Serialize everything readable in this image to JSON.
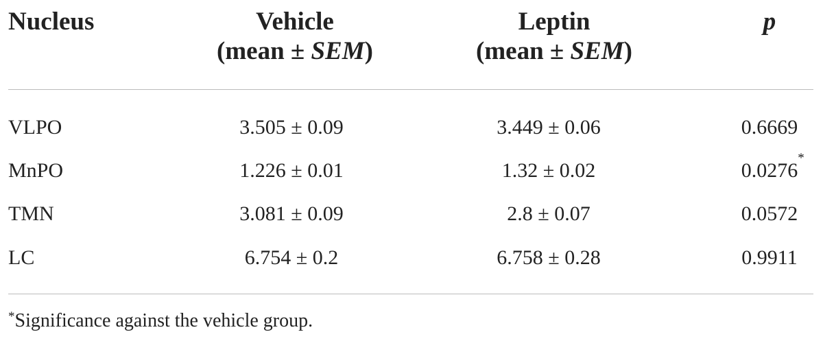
{
  "table": {
    "header": [
      {
        "line1": "Nucleus"
      },
      {
        "line1": "Vehicle",
        "line2": [
          "(mean ± ",
          "SEM",
          ")"
        ]
      },
      {
        "line1": "Leptin",
        "line2": [
          "(mean ± ",
          "SEM",
          ")"
        ]
      },
      {
        "line1": "p"
      }
    ],
    "rows": [
      [
        {
          "text": "VLPO"
        },
        {
          "text": "3.505 ± 0.09"
        },
        {
          "text": "3.449 ± 0.06"
        },
        {
          "text": "0.6669"
        }
      ],
      [
        {
          "text": "MnPO"
        },
        {
          "text": "1.226 ± 0.01"
        },
        {
          "text": "1.32 ± 0.02"
        },
        {
          "text": "0.0276",
          "note": "*"
        }
      ],
      [
        {
          "text": "TMN"
        },
        {
          "text": "3.081 ± 0.09"
        },
        {
          "text": "2.8 ± 0.07"
        },
        {
          "text": "0.0572"
        }
      ],
      [
        {
          "text": "LC"
        },
        {
          "text": "6.754 ± 0.2"
        },
        {
          "text": "6.758 ± 0.28"
        },
        {
          "text": "0.9911"
        }
      ]
    ],
    "footnote": {
      "mark": "*",
      "text": "Significance against the vehicle group."
    }
  }
}
